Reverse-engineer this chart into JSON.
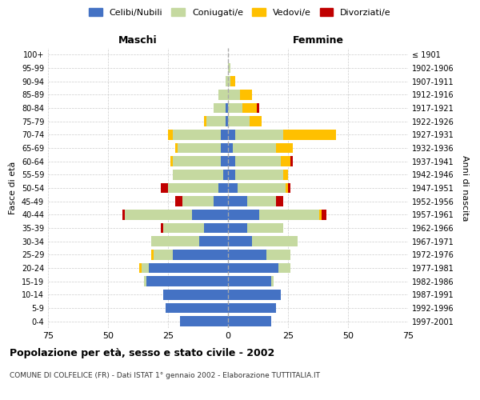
{
  "age_groups": [
    "0-4",
    "5-9",
    "10-14",
    "15-19",
    "20-24",
    "25-29",
    "30-34",
    "35-39",
    "40-44",
    "45-49",
    "50-54",
    "55-59",
    "60-64",
    "65-69",
    "70-74",
    "75-79",
    "80-84",
    "85-89",
    "90-94",
    "95-99",
    "100+"
  ],
  "birth_years": [
    "1997-2001",
    "1992-1996",
    "1987-1991",
    "1982-1986",
    "1977-1981",
    "1972-1976",
    "1967-1971",
    "1962-1966",
    "1957-1961",
    "1952-1956",
    "1947-1951",
    "1942-1946",
    "1937-1941",
    "1932-1936",
    "1927-1931",
    "1922-1926",
    "1917-1921",
    "1912-1916",
    "1907-1911",
    "1902-1906",
    "≤ 1901"
  ],
  "maschi": {
    "celibi": [
      20,
      26,
      27,
      34,
      33,
      23,
      12,
      10,
      15,
      6,
      4,
      2,
      3,
      3,
      3,
      1,
      1,
      0,
      0,
      0,
      0
    ],
    "coniugati": [
      0,
      0,
      0,
      1,
      3,
      8,
      20,
      17,
      28,
      13,
      21,
      21,
      20,
      18,
      20,
      8,
      5,
      4,
      1,
      0,
      0
    ],
    "vedovi": [
      0,
      0,
      0,
      0,
      1,
      1,
      0,
      0,
      0,
      0,
      0,
      0,
      1,
      1,
      2,
      1,
      0,
      0,
      0,
      0,
      0
    ],
    "divorziati": [
      0,
      0,
      0,
      0,
      0,
      0,
      0,
      1,
      1,
      3,
      3,
      0,
      0,
      0,
      0,
      0,
      0,
      0,
      0,
      0,
      0
    ]
  },
  "femmine": {
    "nubili": [
      18,
      20,
      22,
      18,
      21,
      16,
      10,
      8,
      13,
      8,
      4,
      3,
      3,
      2,
      3,
      0,
      0,
      0,
      0,
      0,
      0
    ],
    "coniugate": [
      0,
      0,
      0,
      1,
      5,
      10,
      19,
      15,
      25,
      12,
      20,
      20,
      19,
      18,
      20,
      9,
      6,
      5,
      1,
      1,
      0
    ],
    "vedove": [
      0,
      0,
      0,
      0,
      0,
      0,
      0,
      0,
      1,
      0,
      1,
      2,
      4,
      7,
      22,
      5,
      6,
      5,
      2,
      0,
      0
    ],
    "divorziate": [
      0,
      0,
      0,
      0,
      0,
      0,
      0,
      0,
      2,
      3,
      1,
      0,
      1,
      0,
      0,
      0,
      1,
      0,
      0,
      0,
      0
    ]
  },
  "colors": {
    "celibi": "#4472c4",
    "coniugati": "#c5d9a0",
    "vedovi": "#ffc000",
    "divorziati": "#c00000"
  },
  "xlim": 75,
  "title": "Popolazione per età, sesso e stato civile - 2002",
  "subtitle": "COMUNE DI COLFELICE (FR) - Dati ISTAT 1° gennaio 2002 - Elaborazione TUTTITALIA.IT",
  "ylabel": "Fasce di età",
  "ylabel_right": "Anni di nascita",
  "xlabel_left": "Maschi",
  "xlabel_right": "Femmine",
  "background_color": "#ffffff",
  "grid_color": "#cccccc"
}
